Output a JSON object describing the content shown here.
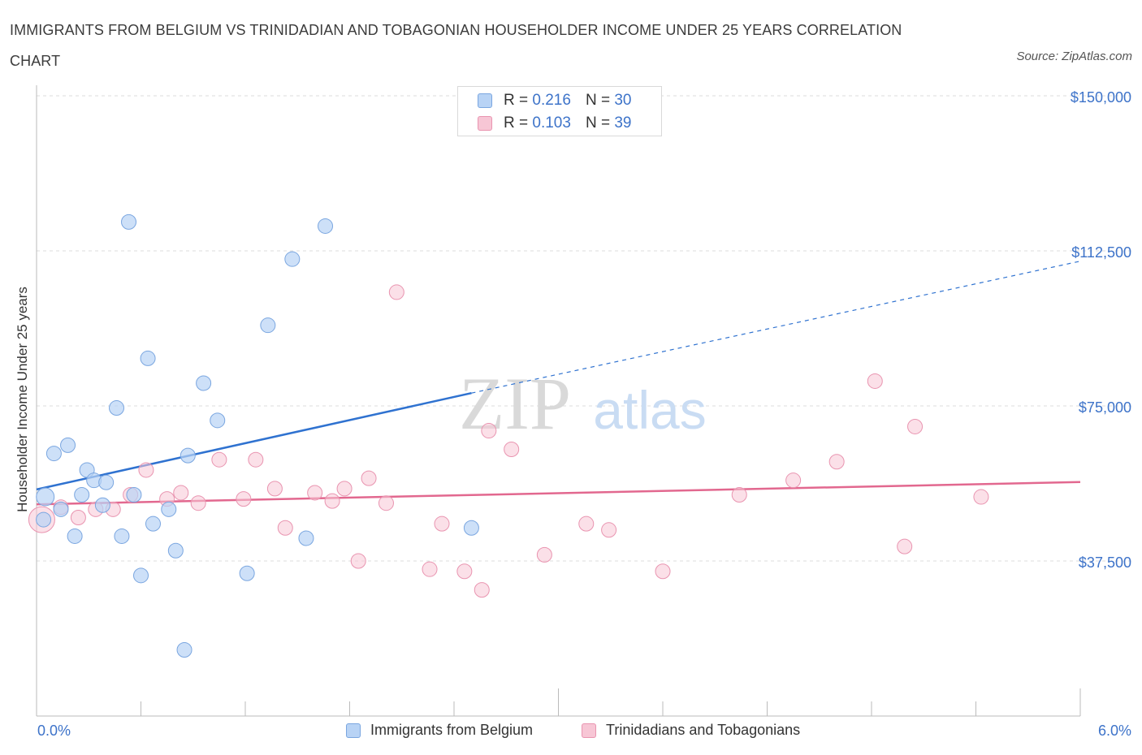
{
  "title": "IMMIGRANTS FROM BELGIUM VS TRINIDADIAN AND TOBAGONIAN HOUSEHOLDER INCOME UNDER 25 YEARS CORRELATION CHART",
  "source": "Source: ZipAtlas.com",
  "watermark": {
    "zip": "ZIP",
    "atlas": "atlas"
  },
  "legend": {
    "r_label": "R =",
    "n_label": "N =",
    "series1": {
      "r": "0.216",
      "n": "30"
    },
    "series2": {
      "r": "0.103",
      "n": "39"
    }
  },
  "colors": {
    "blue_fill": "#b8d3f5",
    "blue_stroke": "#7aa6e0",
    "blue_line": "#2f72d0",
    "pink_fill": "#f7c6d5",
    "pink_stroke": "#e994b0",
    "pink_line": "#e2688f",
    "axis_text": "#3d73c9",
    "grid": "#dddddd"
  },
  "chart_data": {
    "type": "scatter",
    "title": "IMMIGRANTS FROM BELGIUM VS TRINIDADIAN AND TOBAGONIAN HOUSEHOLDER INCOME UNDER 25 YEARS CORRELATION CHART",
    "xlabel": "",
    "ylabel": "Householder Income Under 25 years",
    "xlim": [
      0,
      6
    ],
    "ylim": [
      0,
      150000
    ],
    "x_tick_labels": [
      "0.0%",
      "6.0%"
    ],
    "y_ticks": [
      37500,
      75000,
      112500,
      150000
    ],
    "y_tick_labels": [
      "$37,500",
      "$75,000",
      "$112,500",
      "$150,000"
    ],
    "grid": true,
    "series": [
      {
        "name": "Immigrants from Belgium",
        "color": "blue",
        "points": [
          [
            0.05,
            53000
          ],
          [
            0.1,
            63500
          ],
          [
            0.14,
            50000
          ],
          [
            0.18,
            65500
          ],
          [
            0.22,
            43500
          ],
          [
            0.26,
            53500
          ],
          [
            0.29,
            59500
          ],
          [
            0.33,
            57000
          ],
          [
            0.38,
            51000
          ],
          [
            0.4,
            56500
          ],
          [
            0.46,
            74500
          ],
          [
            0.49,
            43500
          ],
          [
            0.53,
            119500
          ],
          [
            0.56,
            53500
          ],
          [
            0.6,
            34000
          ],
          [
            0.64,
            86500
          ],
          [
            0.67,
            46500
          ],
          [
            0.76,
            50000
          ],
          [
            0.8,
            40000
          ],
          [
            0.85,
            16000
          ],
          [
            0.87,
            63000
          ],
          [
            0.96,
            80500
          ],
          [
            1.04,
            71500
          ],
          [
            1.21,
            34500
          ],
          [
            1.33,
            94500
          ],
          [
            1.47,
            110500
          ],
          [
            1.55,
            43000
          ],
          [
            1.66,
            118500
          ],
          [
            2.5,
            45500
          ],
          [
            0.04,
            47500
          ]
        ],
        "trend": {
          "x": [
            0.0,
            2.5
          ],
          "y": [
            54800,
            78100
          ],
          "extended_to": [
            6.0,
            110000
          ]
        }
      },
      {
        "name": "Trinidadians and Tobagonians",
        "color": "pink",
        "points": [
          [
            0.03,
            47500
          ],
          [
            0.14,
            50500
          ],
          [
            0.24,
            48000
          ],
          [
            0.34,
            50000
          ],
          [
            0.44,
            50000
          ],
          [
            0.63,
            59500
          ],
          [
            0.54,
            53500
          ],
          [
            0.75,
            52500
          ],
          [
            0.83,
            54000
          ],
          [
            0.93,
            51500
          ],
          [
            1.05,
            62000
          ],
          [
            1.19,
            52500
          ],
          [
            1.26,
            62000
          ],
          [
            1.37,
            55000
          ],
          [
            1.43,
            45500
          ],
          [
            1.6,
            54000
          ],
          [
            1.7,
            52000
          ],
          [
            1.77,
            55000
          ],
          [
            1.85,
            37500
          ],
          [
            1.91,
            57500
          ],
          [
            2.01,
            51500
          ],
          [
            2.07,
            102500
          ],
          [
            2.26,
            35500
          ],
          [
            2.33,
            46500
          ],
          [
            2.46,
            35000
          ],
          [
            2.56,
            30500
          ],
          [
            2.6,
            69000
          ],
          [
            2.73,
            64500
          ],
          [
            2.92,
            39000
          ],
          [
            3.16,
            46500
          ],
          [
            3.29,
            45000
          ],
          [
            3.6,
            35000
          ],
          [
            4.04,
            53500
          ],
          [
            4.35,
            57000
          ],
          [
            4.6,
            61500
          ],
          [
            4.82,
            81000
          ],
          [
            4.99,
            41000
          ],
          [
            5.05,
            70000
          ],
          [
            5.43,
            53000
          ]
        ],
        "trend": {
          "x": [
            0.0,
            6.0
          ],
          "y": [
            51200,
            56600
          ]
        }
      }
    ]
  },
  "bottom_legend": {
    "series1": "Immigrants from Belgium",
    "series2": "Trinidadians and Tobagonians"
  }
}
